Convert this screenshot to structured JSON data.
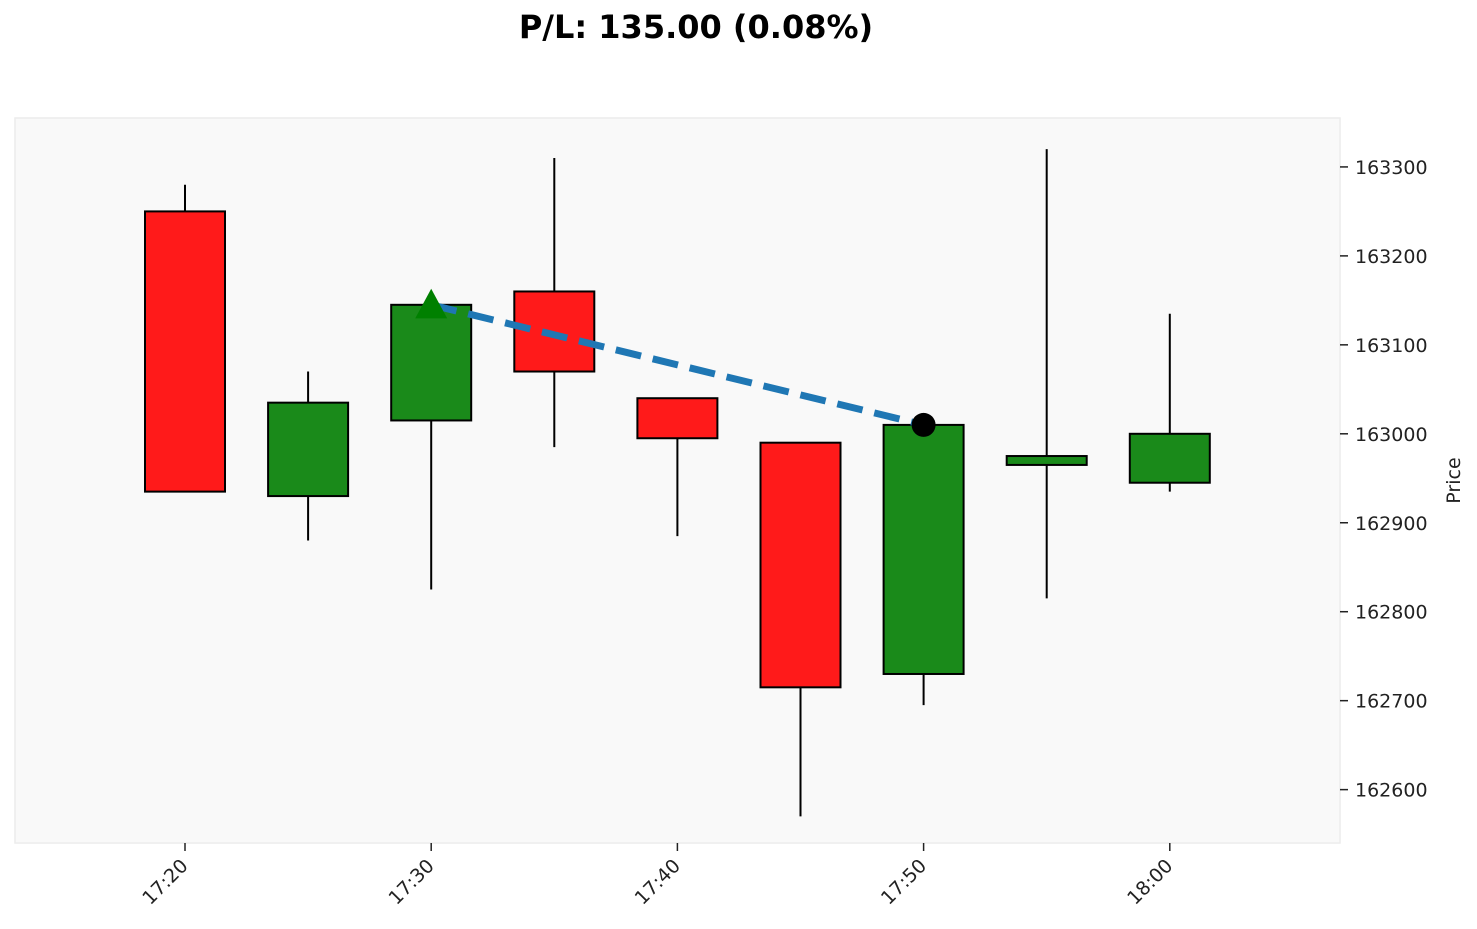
{
  "title": "P/L: 135.00 (0.08%)",
  "chart_data": {
    "type": "candlestick",
    "title": "P/L: 135.00 (0.08%)",
    "xlabel": "",
    "ylabel": "Price",
    "ylim": [
      162540,
      163355
    ],
    "y_ticks": [
      163300,
      163200,
      163100,
      163000,
      162900,
      162800,
      162700,
      162600
    ],
    "x_ticks": [
      "17:20",
      "17:30",
      "17:40",
      "17:50",
      "18:00"
    ],
    "grid": false,
    "colors": {
      "up": "#1a8a1a",
      "down": "#ff1a1a",
      "background": "#f9f9f9",
      "trade_line": "#1f77b4",
      "entry_marker": "#008000",
      "exit_marker": "#000000"
    },
    "candles": [
      {
        "time": "17:20",
        "open": 163250,
        "high": 163280,
        "low": 162935,
        "close": 162935
      },
      {
        "time": "17:25",
        "open": 162930,
        "high": 163070,
        "low": 162880,
        "close": 163035
      },
      {
        "time": "17:30",
        "open": 163015,
        "high": 163145,
        "low": 162825,
        "close": 163145
      },
      {
        "time": "17:35",
        "open": 163160,
        "high": 163310,
        "low": 162985,
        "close": 163070
      },
      {
        "time": "17:40",
        "open": 163040,
        "high": 163040,
        "low": 162885,
        "close": 162995
      },
      {
        "time": "17:45",
        "open": 162990,
        "high": 162990,
        "low": 162570,
        "close": 162715
      },
      {
        "time": "17:50",
        "open": 162730,
        "high": 163010,
        "low": 162695,
        "close": 163010
      },
      {
        "time": "17:55",
        "open": 162965,
        "high": 163320,
        "low": 162815,
        "close": 162975
      },
      {
        "time": "18:00",
        "open": 162945,
        "high": 163135,
        "low": 162935,
        "close": 163000
      }
    ],
    "trade": {
      "entry": {
        "time": "17:30",
        "price": 163145,
        "marker": "triangle-up"
      },
      "exit": {
        "time": "17:50",
        "price": 163010,
        "marker": "circle"
      }
    }
  }
}
